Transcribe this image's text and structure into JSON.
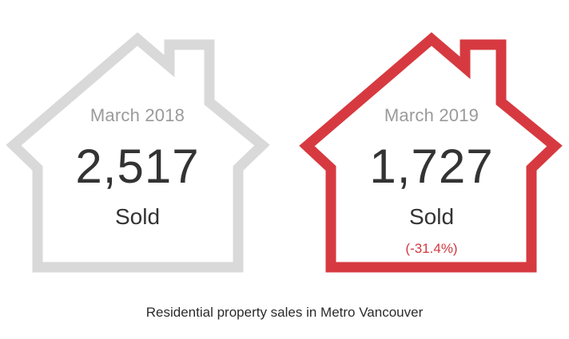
{
  "houses": [
    {
      "period": "March 2018",
      "count": "2,517",
      "unit": "Sold",
      "change": "",
      "stroke_color": "#d9d9d9"
    },
    {
      "period": "March 2019",
      "count": "1,727",
      "unit": "Sold",
      "change": "(-31.4%)",
      "stroke_color": "#d63a40"
    }
  ],
  "caption": "Residential property sales in Metro Vancouver"
}
